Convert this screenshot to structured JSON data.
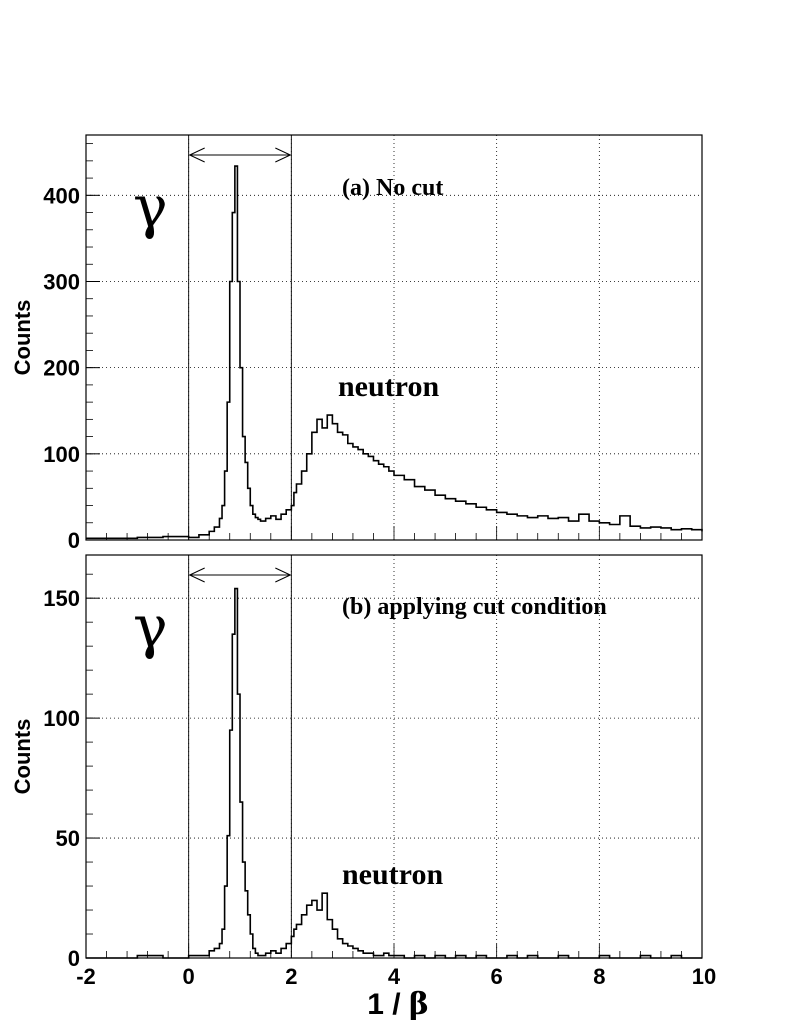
{
  "chart_data": [
    {
      "type": "histogram",
      "panel": "a",
      "annotation": "(a) No cut",
      "gamma_label": "γ",
      "neutron_label": "neutron",
      "ylabel": "Counts",
      "xlim": [
        -2,
        10
      ],
      "ylim": [
        0,
        470
      ],
      "yticks": [
        0,
        100,
        200,
        300,
        400
      ],
      "grid": true,
      "cut_window": [
        0,
        2
      ],
      "x": [
        -2.0,
        -1.0,
        -0.5,
        0.0,
        0.2,
        0.4,
        0.5,
        0.6,
        0.65,
        0.7,
        0.75,
        0.8,
        0.85,
        0.9,
        0.95,
        1.0,
        1.05,
        1.1,
        1.15,
        1.2,
        1.25,
        1.3,
        1.35,
        1.4,
        1.5,
        1.6,
        1.7,
        1.8,
        1.9,
        2.0,
        2.05,
        2.1,
        2.2,
        2.3,
        2.4,
        2.5,
        2.6,
        2.7,
        2.8,
        2.9,
        3.0,
        3.1,
        3.2,
        3.3,
        3.4,
        3.5,
        3.6,
        3.7,
        3.8,
        3.9,
        4.0,
        4.2,
        4.4,
        4.6,
        4.8,
        5.0,
        5.2,
        5.4,
        5.6,
        5.8,
        6.0,
        6.2,
        6.4,
        6.6,
        6.8,
        7.0,
        7.2,
        7.4,
        7.6,
        7.8,
        8.0,
        8.2,
        8.4,
        8.6,
        8.8,
        9.0,
        9.2,
        9.4,
        9.6,
        9.8,
        10.0
      ],
      "values": [
        2,
        3,
        4,
        3,
        6,
        10,
        15,
        25,
        40,
        80,
        160,
        300,
        380,
        434,
        300,
        200,
        120,
        90,
        60,
        40,
        30,
        26,
        24,
        22,
        25,
        28,
        24,
        30,
        35,
        40,
        55,
        65,
        80,
        100,
        125,
        140,
        130,
        145,
        135,
        125,
        122,
        112,
        108,
        105,
        100,
        97,
        92,
        88,
        85,
        80,
        75,
        70,
        62,
        58,
        52,
        48,
        45,
        42,
        38,
        35,
        32,
        30,
        28,
        26,
        28,
        25,
        26,
        22,
        30,
        22,
        20,
        18,
        28,
        16,
        14,
        15,
        14,
        12,
        13,
        12,
        10
      ]
    },
    {
      "type": "histogram",
      "panel": "b",
      "annotation": "(b) applying cut condition",
      "gamma_label": "γ",
      "neutron_label": "neutron",
      "ylabel": "Counts",
      "xlabel": "1 / β",
      "xlim": [
        -2,
        10
      ],
      "ylim": [
        0,
        168
      ],
      "xticks": [
        -2,
        0,
        2,
        4,
        6,
        8,
        10
      ],
      "yticks": [
        0,
        50,
        100,
        150
      ],
      "grid": true,
      "cut_window": [
        0,
        2
      ],
      "x": [
        -2.0,
        -1.0,
        -0.5,
        0.0,
        0.2,
        0.4,
        0.5,
        0.6,
        0.65,
        0.7,
        0.75,
        0.8,
        0.85,
        0.9,
        0.95,
        1.0,
        1.05,
        1.1,
        1.15,
        1.2,
        1.25,
        1.3,
        1.35,
        1.4,
        1.5,
        1.6,
        1.7,
        1.8,
        1.9,
        2.0,
        2.05,
        2.1,
        2.2,
        2.3,
        2.4,
        2.5,
        2.6,
        2.7,
        2.8,
        2.9,
        3.0,
        3.1,
        3.2,
        3.3,
        3.4,
        3.5,
        3.6,
        3.7,
        3.8,
        3.9,
        4.0,
        4.2,
        4.4,
        4.6,
        4.8,
        5.0,
        5.2,
        5.4,
        5.6,
        5.8,
        6.0,
        6.2,
        6.4,
        6.6,
        6.8,
        7.0,
        7.2,
        7.4,
        7.6,
        7.8,
        8.0,
        8.2,
        8.4,
        8.6,
        8.8,
        9.0,
        9.2,
        9.4,
        9.6,
        9.8,
        10.0
      ],
      "values": [
        0,
        1,
        0,
        1,
        1,
        3,
        4,
        6,
        12,
        30,
        51,
        95,
        135,
        154,
        110,
        65,
        40,
        28,
        18,
        10,
        4,
        2,
        1,
        1,
        2,
        3,
        2,
        4,
        6,
        9,
        12,
        14,
        18,
        22,
        24,
        20,
        27,
        16,
        12,
        8,
        6,
        5,
        4,
        3,
        2,
        2,
        1,
        1,
        2,
        1,
        1,
        0,
        1,
        0,
        1,
        0,
        1,
        0,
        1,
        0,
        0,
        1,
        0,
        1,
        0,
        0,
        1,
        0,
        0,
        0,
        1,
        0,
        0,
        0,
        1,
        0,
        0,
        1,
        0,
        0,
        0
      ]
    }
  ]
}
